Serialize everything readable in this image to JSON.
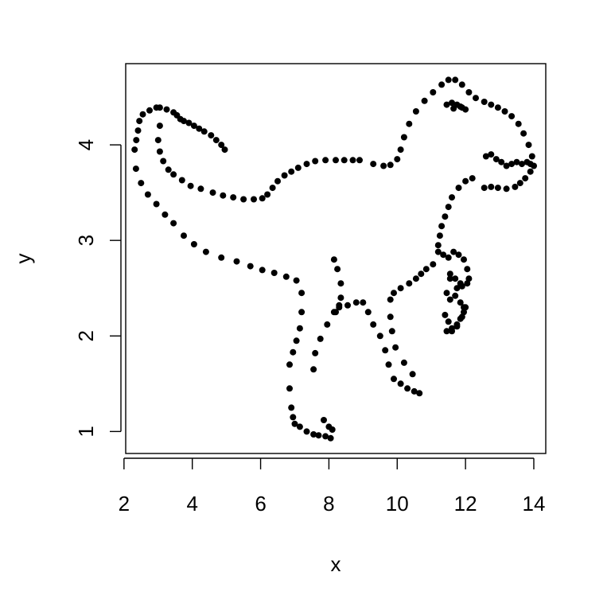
{
  "chart_data": {
    "type": "scatter",
    "title": "",
    "xlabel": "x",
    "ylabel": "y",
    "xlim": [
      2.05,
      14.35
    ],
    "ylim": [
      0.77,
      4.85
    ],
    "xticks": [
      2,
      4,
      6,
      8,
      10,
      12,
      14
    ],
    "yticks": [
      1,
      2,
      3,
      4
    ],
    "grid": false,
    "legend": "none",
    "point_color": "#000000",
    "x": [
      2.31,
      2.36,
      2.41,
      2.45,
      2.55,
      2.75,
      2.95,
      3.05,
      3.25,
      3.45,
      3.55,
      3.65,
      3.75,
      3.9,
      4.05,
      4.2,
      4.35,
      4.55,
      4.7,
      4.85,
      4.95,
      3.05,
      3.0,
      3.05,
      3.15,
      3.3,
      3.45,
      3.7,
      3.95,
      4.25,
      4.6,
      4.9,
      5.2,
      5.5,
      5.8,
      6.05,
      6.2,
      6.35,
      6.5,
      6.7,
      6.9,
      7.1,
      7.35,
      7.6,
      7.9,
      8.2,
      8.45,
      8.7,
      8.9,
      9.3,
      9.6,
      9.8,
      10.0,
      10.1,
      10.2,
      10.35,
      10.55,
      10.8,
      11.05,
      11.3,
      11.5,
      11.7,
      11.9,
      12.1,
      12.3,
      12.55,
      12.75,
      12.95,
      13.15,
      13.35,
      13.55,
      13.7,
      13.85,
      13.95,
      14.0,
      13.9,
      13.75,
      13.6,
      13.45,
      13.2,
      12.95,
      12.75,
      12.55,
      12.6,
      12.75,
      12.9,
      13.05,
      13.2,
      13.35,
      13.5,
      13.65,
      13.8,
      13.9,
      11.45,
      11.6,
      11.75,
      11.9,
      12.0,
      11.65,
      11.85,
      12.2,
      12.0,
      11.8,
      11.6,
      11.5,
      11.4,
      11.3,
      11.25,
      11.2,
      2.35,
      2.5,
      2.7,
      2.95,
      3.2,
      3.45,
      3.75,
      4.05,
      4.4,
      4.85,
      5.3,
      5.7,
      6.05,
      6.4,
      6.75,
      7.05,
      7.2,
      7.2,
      7.15,
      7.05,
      6.95,
      6.85,
      6.85,
      6.9,
      6.95,
      7.0,
      7.15,
      7.35,
      7.55,
      7.7,
      7.9,
      8.05,
      8.1,
      8.0,
      7.85,
      7.55,
      7.6,
      7.75,
      7.95,
      8.15,
      8.3,
      8.55,
      8.8,
      9.0,
      9.15,
      9.3,
      9.5,
      9.65,
      9.75,
      9.9,
      10.1,
      10.3,
      10.5,
      10.65,
      10.45,
      10.2,
      9.95,
      9.85,
      9.8,
      9.8,
      9.9,
      10.1,
      10.35,
      10.55,
      10.7,
      10.85,
      11.05,
      8.15,
      8.25,
      8.35,
      8.35,
      8.3,
      8.2,
      11.2,
      11.35,
      11.5,
      11.65,
      11.8,
      11.95,
      12.05,
      12.1,
      12.05,
      11.9,
      11.75,
      11.55,
      11.45,
      11.55,
      11.7,
      11.85,
      11.95,
      11.9,
      11.75,
      11.6,
      11.5,
      11.4,
      11.45,
      11.6,
      11.75,
      11.85,
      11.95,
      12.0,
      11.85,
      11.7,
      11.55
    ],
    "y": [
      3.95,
      4.05,
      4.15,
      4.25,
      4.32,
      4.36,
      4.39,
      4.39,
      4.37,
      4.34,
      4.31,
      4.27,
      4.25,
      4.23,
      4.2,
      4.17,
      4.14,
      4.1,
      4.05,
      4.0,
      3.95,
      4.2,
      4.05,
      3.93,
      3.83,
      3.74,
      3.69,
      3.63,
      3.57,
      3.54,
      3.5,
      3.47,
      3.45,
      3.43,
      3.43,
      3.44,
      3.48,
      3.55,
      3.62,
      3.68,
      3.72,
      3.76,
      3.8,
      3.83,
      3.84,
      3.84,
      3.84,
      3.84,
      3.84,
      3.8,
      3.78,
      3.79,
      3.85,
      3.95,
      4.08,
      4.22,
      4.35,
      4.46,
      4.55,
      4.63,
      4.68,
      4.68,
      4.63,
      4.55,
      4.49,
      4.45,
      4.42,
      4.39,
      4.35,
      4.3,
      4.22,
      4.12,
      4.0,
      3.88,
      3.78,
      3.72,
      3.65,
      3.6,
      3.56,
      3.54,
      3.55,
      3.56,
      3.55,
      3.88,
      3.9,
      3.85,
      3.82,
      3.78,
      3.8,
      3.82,
      3.8,
      3.82,
      3.8,
      4.42,
      4.44,
      4.42,
      4.39,
      4.37,
      4.38,
      4.4,
      3.65,
      3.62,
      3.55,
      3.45,
      3.35,
      3.25,
      3.15,
      3.05,
      2.95,
      3.75,
      3.6,
      3.48,
      3.38,
      3.27,
      3.18,
      3.05,
      2.96,
      2.88,
      2.82,
      2.78,
      2.73,
      2.69,
      2.66,
      2.62,
      2.58,
      2.45,
      2.25,
      2.08,
      1.95,
      1.83,
      1.7,
      1.45,
      1.25,
      1.15,
      1.08,
      1.05,
      1.0,
      0.97,
      0.96,
      0.95,
      0.93,
      1.02,
      1.05,
      1.12,
      1.65,
      1.82,
      1.97,
      2.12,
      2.25,
      2.32,
      2.32,
      2.35,
      2.35,
      2.25,
      2.12,
      2.0,
      1.85,
      1.7,
      1.55,
      1.5,
      1.45,
      1.42,
      1.4,
      1.6,
      1.72,
      1.88,
      2.05,
      2.2,
      2.38,
      2.45,
      2.5,
      2.55,
      2.6,
      2.65,
      2.7,
      2.75,
      2.8,
      2.7,
      2.55,
      2.4,
      2.3,
      2.25,
      2.88,
      2.85,
      2.82,
      2.88,
      2.85,
      2.8,
      2.7,
      2.6,
      2.55,
      2.52,
      2.5,
      2.6,
      2.45,
      2.38,
      2.42,
      2.35,
      2.3,
      2.2,
      2.1,
      2.05,
      2.15,
      2.22,
      2.05,
      2.08,
      2.12,
      2.18,
      2.25,
      2.3,
      2.55,
      2.6,
      2.65
    ]
  }
}
